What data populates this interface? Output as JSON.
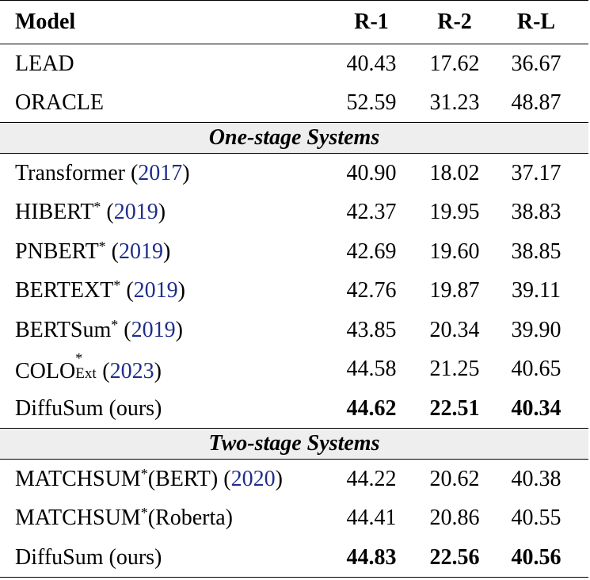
{
  "table": {
    "headers": {
      "model": "Model",
      "r1": "R-1",
      "r2": "R-2",
      "rl": "R-L"
    },
    "baselines": [
      {
        "name": "LEAD",
        "r1": "40.43",
        "r2": "17.62",
        "rl": "36.67"
      },
      {
        "name": "ORACLE",
        "r1": "52.59",
        "r2": "31.23",
        "rl": "48.87"
      }
    ],
    "section_one_stage": "One-stage Systems",
    "one_stage": [
      {
        "name": "Transformer",
        "star": "",
        "cite": "2017",
        "r1": "40.90",
        "r2": "18.02",
        "rl": "37.17"
      },
      {
        "name": "HIBERT",
        "star": "*",
        "cite": "2019",
        "r1": "42.37",
        "r2": "19.95",
        "rl": "38.83"
      },
      {
        "name": "PNBERT",
        "star": "*",
        "cite": "2019",
        "r1": "42.69",
        "r2": "19.60",
        "rl": "38.85"
      },
      {
        "name": "BERTEXT",
        "star": "*",
        "cite": "2019",
        "r1": "42.76",
        "r2": "19.87",
        "rl": "39.11"
      },
      {
        "name": "BERTSum",
        "star": "*",
        "cite": "2019",
        "r1": "43.85",
        "r2": "20.34",
        "rl": "39.90"
      },
      {
        "name": "COLO",
        "star": "*",
        "subscript": "Ext",
        "cite": "2023",
        "r1": "44.58",
        "r2": "21.25",
        "rl": "40.65"
      },
      {
        "name": "DiffuSum (ours)",
        "r1": "44.62",
        "r2": "22.51",
        "rl": "40.34"
      }
    ],
    "section_two_stage": "Two-stage Systems",
    "two_stage": [
      {
        "name": "MATCHSUM",
        "star": "*",
        "variant": "(BERT)",
        "cite": "2020",
        "r1": "44.22",
        "r2": "20.62",
        "rl": "40.38"
      },
      {
        "name": "MATCHSUM",
        "star": "*",
        "variant": "(Roberta)",
        "r1": "44.41",
        "r2": "20.86",
        "rl": "40.55"
      },
      {
        "name": "DiffuSum (ours)",
        "r1": "44.83",
        "r2": "22.56",
        "rl": "40.56"
      }
    ]
  }
}
